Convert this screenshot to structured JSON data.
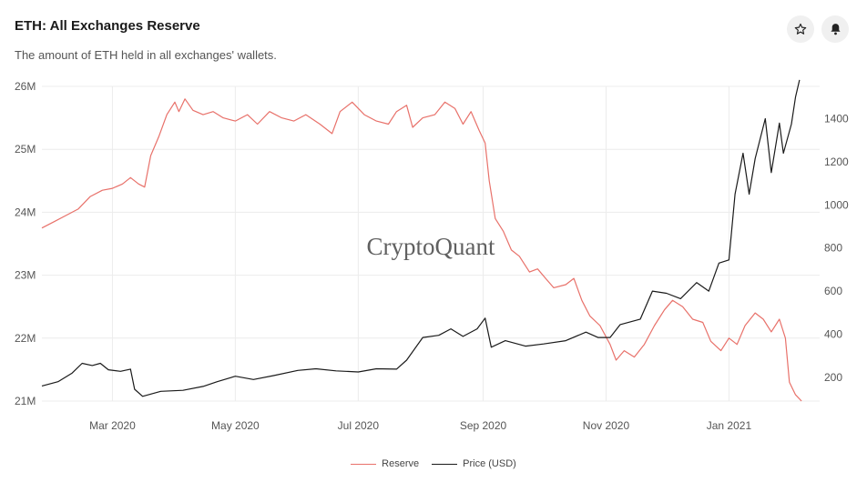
{
  "header": {
    "title": "ETH: All Exchanges Reserve",
    "subtitle": "The amount of ETH held in all exchanges' wallets."
  },
  "actions": {
    "favorite_icon": "star-icon",
    "alert_icon": "bell-icon"
  },
  "watermark": "CryptoQuant",
  "colors": {
    "reserve": "#e8716a",
    "price": "#1a1a1a",
    "grid": "#ececec"
  },
  "chart_data": {
    "type": "line",
    "title": "ETH: All Exchanges Reserve",
    "x_range": [
      "2020-01-26",
      "2021-02-15"
    ],
    "x_ticks": [
      "Mar 2020",
      "May 2020",
      "Jul 2020",
      "Sep 2020",
      "Nov 2020",
      "Jan 2021"
    ],
    "y_left": {
      "ylim": [
        21000000,
        26000000
      ],
      "ticks": [
        "21M",
        "22M",
        "23M",
        "24M",
        "25M",
        "26M"
      ]
    },
    "y_right": {
      "ylim": [
        90,
        1550
      ],
      "ticks": [
        "200",
        "400",
        "600",
        "800",
        "1000",
        "1200",
        "1400"
      ]
    },
    "grid": true,
    "legend_position": "bottom-center",
    "series": [
      {
        "name": "Reserve",
        "axis": "left",
        "points": [
          [
            "2020-01-26",
            23.75
          ],
          [
            "2020-02-01",
            23.85
          ],
          [
            "2020-02-07",
            23.95
          ],
          [
            "2020-02-13",
            24.05
          ],
          [
            "2020-02-19",
            24.25
          ],
          [
            "2020-02-25",
            24.35
          ],
          [
            "2020-03-01",
            24.38
          ],
          [
            "2020-03-06",
            24.45
          ],
          [
            "2020-03-10",
            24.55
          ],
          [
            "2020-03-14",
            24.45
          ],
          [
            "2020-03-17",
            24.4
          ],
          [
            "2020-03-20",
            24.9
          ],
          [
            "2020-03-24",
            25.2
          ],
          [
            "2020-03-28",
            25.55
          ],
          [
            "2020-04-01",
            25.75
          ],
          [
            "2020-04-03",
            25.6
          ],
          [
            "2020-04-06",
            25.8
          ],
          [
            "2020-04-10",
            25.62
          ],
          [
            "2020-04-15",
            25.55
          ],
          [
            "2020-04-20",
            25.6
          ],
          [
            "2020-04-25",
            25.5
          ],
          [
            "2020-05-01",
            25.45
          ],
          [
            "2020-05-07",
            25.55
          ],
          [
            "2020-05-12",
            25.4
          ],
          [
            "2020-05-18",
            25.6
          ],
          [
            "2020-05-24",
            25.5
          ],
          [
            "2020-05-30",
            25.45
          ],
          [
            "2020-06-05",
            25.55
          ],
          [
            "2020-06-12",
            25.4
          ],
          [
            "2020-06-18",
            25.25
          ],
          [
            "2020-06-22",
            25.6
          ],
          [
            "2020-06-28",
            25.75
          ],
          [
            "2020-07-04",
            25.55
          ],
          [
            "2020-07-10",
            25.45
          ],
          [
            "2020-07-16",
            25.4
          ],
          [
            "2020-07-20",
            25.6
          ],
          [
            "2020-07-25",
            25.7
          ],
          [
            "2020-07-28",
            25.35
          ],
          [
            "2020-08-02",
            25.5
          ],
          [
            "2020-08-08",
            25.55
          ],
          [
            "2020-08-13",
            25.75
          ],
          [
            "2020-08-18",
            25.65
          ],
          [
            "2020-08-22",
            25.4
          ],
          [
            "2020-08-26",
            25.6
          ],
          [
            "2020-08-30",
            25.3
          ],
          [
            "2020-09-02",
            25.1
          ],
          [
            "2020-09-04",
            24.5
          ],
          [
            "2020-09-07",
            23.9
          ],
          [
            "2020-09-11",
            23.7
          ],
          [
            "2020-09-15",
            23.4
          ],
          [
            "2020-09-19",
            23.3
          ],
          [
            "2020-09-24",
            23.05
          ],
          [
            "2020-09-28",
            23.1
          ],
          [
            "2020-10-02",
            22.95
          ],
          [
            "2020-10-06",
            22.8
          ],
          [
            "2020-10-12",
            22.85
          ],
          [
            "2020-10-16",
            22.95
          ],
          [
            "2020-10-20",
            22.6
          ],
          [
            "2020-10-24",
            22.35
          ],
          [
            "2020-10-29",
            22.2
          ],
          [
            "2020-11-03",
            21.9
          ],
          [
            "2020-11-06",
            21.65
          ],
          [
            "2020-11-10",
            21.8
          ],
          [
            "2020-11-15",
            21.7
          ],
          [
            "2020-11-20",
            21.9
          ],
          [
            "2020-11-25",
            22.2
          ],
          [
            "2020-11-30",
            22.45
          ],
          [
            "2020-12-04",
            22.6
          ],
          [
            "2020-12-09",
            22.5
          ],
          [
            "2020-12-14",
            22.3
          ],
          [
            "2020-12-19",
            22.25
          ],
          [
            "2020-12-23",
            21.95
          ],
          [
            "2020-12-28",
            21.8
          ],
          [
            "2021-01-01",
            22.0
          ],
          [
            "2021-01-05",
            21.9
          ],
          [
            "2021-01-09",
            22.2
          ],
          [
            "2021-01-14",
            22.4
          ],
          [
            "2021-01-18",
            22.3
          ],
          [
            "2021-01-22",
            22.1
          ],
          [
            "2021-01-26",
            22.3
          ],
          [
            "2021-01-29",
            22.0
          ],
          [
            "2021-01-31",
            21.3
          ],
          [
            "2021-02-03",
            21.1
          ],
          [
            "2021-02-06",
            21.0
          ]
        ]
      },
      {
        "name": "Price (USD)",
        "axis": "right",
        "points": [
          [
            "2020-01-26",
            160
          ],
          [
            "2020-02-03",
            180
          ],
          [
            "2020-02-10",
            220
          ],
          [
            "2020-02-15",
            265
          ],
          [
            "2020-02-20",
            255
          ],
          [
            "2020-02-24",
            265
          ],
          [
            "2020-02-28",
            235
          ],
          [
            "2020-03-05",
            228
          ],
          [
            "2020-03-10",
            238
          ],
          [
            "2020-03-12",
            145
          ],
          [
            "2020-03-16",
            112
          ],
          [
            "2020-03-25",
            135
          ],
          [
            "2020-04-05",
            140
          ],
          [
            "2020-04-15",
            158
          ],
          [
            "2020-04-22",
            180
          ],
          [
            "2020-05-01",
            205
          ],
          [
            "2020-05-10",
            190
          ],
          [
            "2020-05-20",
            208
          ],
          [
            "2020-06-01",
            232
          ],
          [
            "2020-06-10",
            240
          ],
          [
            "2020-06-20",
            230
          ],
          [
            "2020-07-01",
            225
          ],
          [
            "2020-07-10",
            240
          ],
          [
            "2020-07-20",
            238
          ],
          [
            "2020-07-25",
            280
          ],
          [
            "2020-08-02",
            385
          ],
          [
            "2020-08-10",
            395
          ],
          [
            "2020-08-16",
            425
          ],
          [
            "2020-08-22",
            390
          ],
          [
            "2020-08-29",
            425
          ],
          [
            "2020-09-02",
            475
          ],
          [
            "2020-09-05",
            340
          ],
          [
            "2020-09-12",
            370
          ],
          [
            "2020-09-22",
            345
          ],
          [
            "2020-10-01",
            355
          ],
          [
            "2020-10-12",
            370
          ],
          [
            "2020-10-22",
            410
          ],
          [
            "2020-10-28",
            385
          ],
          [
            "2020-11-03",
            385
          ],
          [
            "2020-11-08",
            445
          ],
          [
            "2020-11-18",
            470
          ],
          [
            "2020-11-24",
            600
          ],
          [
            "2020-12-01",
            590
          ],
          [
            "2020-12-08",
            565
          ],
          [
            "2020-12-16",
            640
          ],
          [
            "2020-12-22",
            600
          ],
          [
            "2020-12-27",
            730
          ],
          [
            "2021-01-01",
            745
          ],
          [
            "2021-01-04",
            1050
          ],
          [
            "2021-01-08",
            1240
          ],
          [
            "2021-01-11",
            1050
          ],
          [
            "2021-01-14",
            1215
          ],
          [
            "2021-01-19",
            1400
          ],
          [
            "2021-01-22",
            1150
          ],
          [
            "2021-01-26",
            1380
          ],
          [
            "2021-01-28",
            1240
          ],
          [
            "2021-02-01",
            1375
          ],
          [
            "2021-02-03",
            1500
          ],
          [
            "2021-02-05",
            1580
          ]
        ]
      }
    ]
  },
  "legend": [
    {
      "label": "Reserve",
      "color": "#e8716a"
    },
    {
      "label": "Price (USD)",
      "color": "#1a1a1a"
    }
  ]
}
